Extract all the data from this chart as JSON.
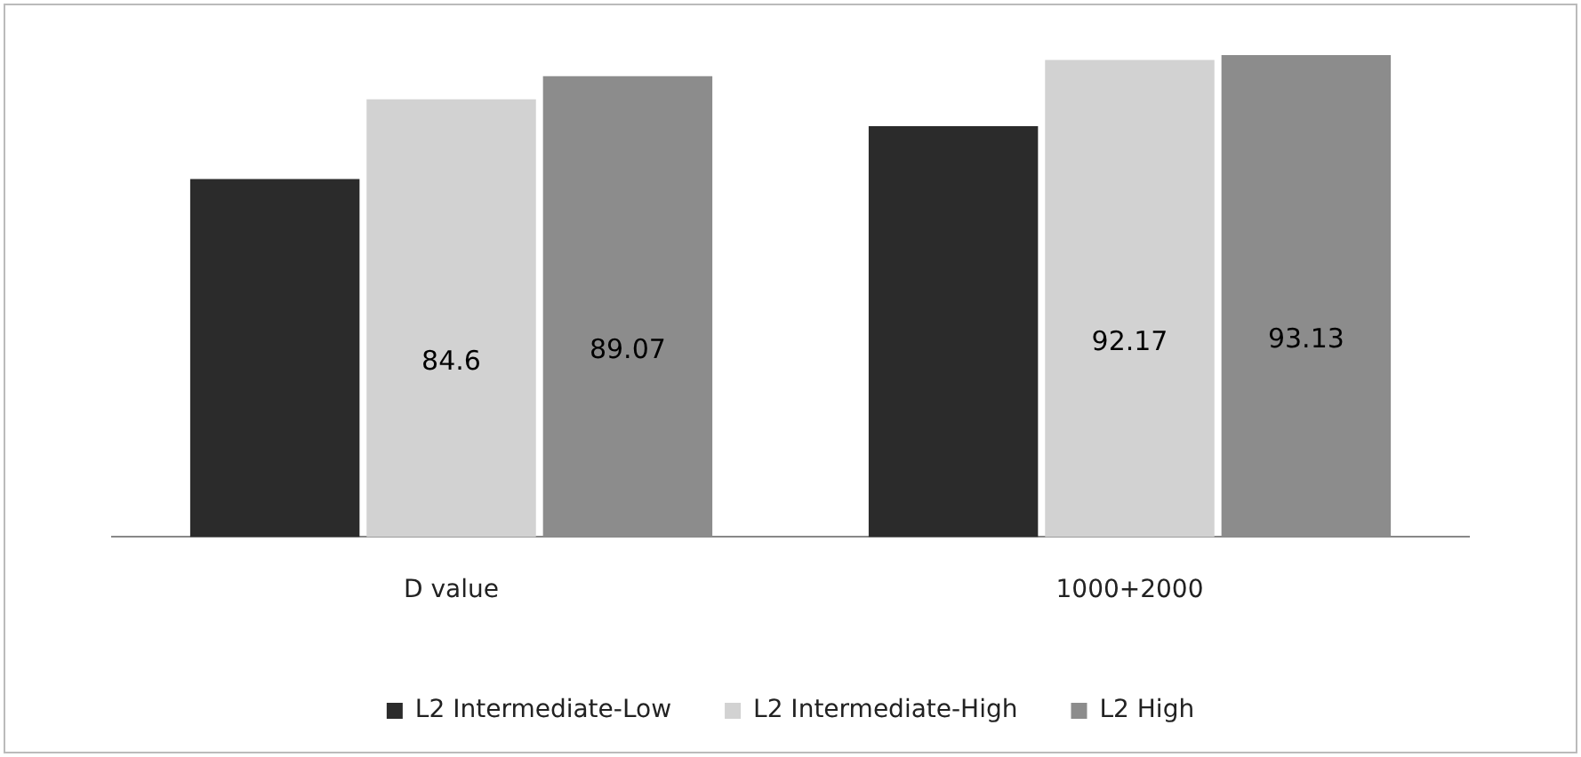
{
  "chart_data": {
    "type": "bar",
    "categories": [
      "D value",
      "1000+2000"
    ],
    "series": [
      {
        "name": "L2 Intermediate-Low",
        "color": "#2b2b2b",
        "values": [
          69.2,
          79.4
        ],
        "value_labels": [
          null,
          null
        ]
      },
      {
        "name": "L2 Intermediate-High",
        "color": "#d2d2d2",
        "values": [
          84.6,
          92.17
        ],
        "value_labels": [
          "84.6",
          "92.17"
        ]
      },
      {
        "name": "L2 High",
        "color": "#8c8c8c",
        "values": [
          89.07,
          93.13
        ],
        "value_labels": [
          "89.07",
          "93.13"
        ]
      }
    ],
    "tick_labels": "x",
    "legend": "bottom"
  }
}
